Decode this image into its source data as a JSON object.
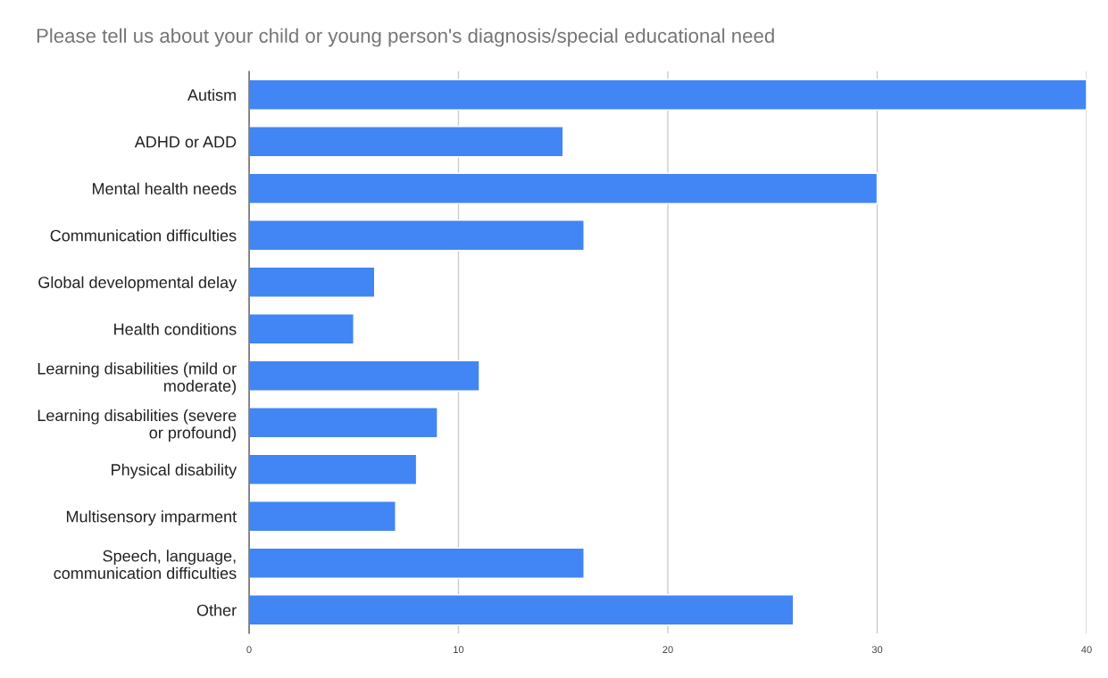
{
  "chart_data": {
    "type": "bar",
    "orientation": "horizontal",
    "title": "Please tell us about your child or young person's diagnosis/special educational need",
    "categories": [
      "Autism",
      "ADHD or ADD",
      "Mental health needs",
      "Communication difficulties",
      "Global developmental delay",
      "Health conditions",
      "Learning disabilities (mild or moderate)",
      "Learning disabilities (severe or profound)",
      "Physical disability",
      "Multisensory imparment",
      "Speech, language, communication difficulties",
      "Other"
    ],
    "values": [
      40,
      15,
      30,
      16,
      6,
      5,
      11,
      9,
      8,
      7,
      16,
      26
    ],
    "color": "#4285f4",
    "xlim": [
      0,
      40
    ],
    "xticks": [
      0,
      10,
      20,
      30,
      40
    ],
    "grid": "x",
    "legend": false
  }
}
